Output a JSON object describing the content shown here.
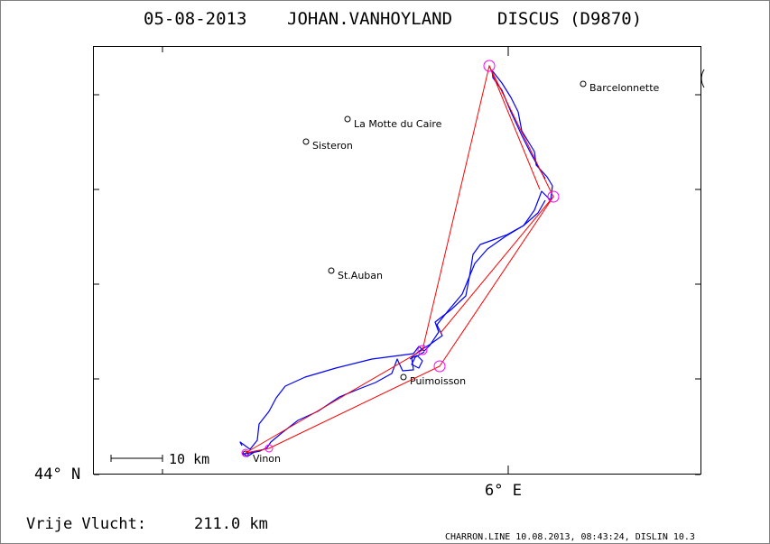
{
  "title": {
    "date": "05-08-2013",
    "pilot": "JOHAN.VANHOYLAND",
    "glider": "DISCUS (D9870)"
  },
  "axes": {
    "lat_label": "44° N",
    "lon_label": "6° E"
  },
  "scale_bar": {
    "label": "10 km"
  },
  "footer": {
    "distance_label": "Vrije Vlucht:",
    "distance_value": "211.0 km",
    "credit": "CHARRON.LINE 10.08.2013, 08:43:24, DISLIN 10.3"
  },
  "places": [
    {
      "name": "Barcelonnette"
    },
    {
      "name": "La Motte du Caire"
    },
    {
      "name": "Sisteron"
    },
    {
      "name": "St.Auban"
    },
    {
      "name": "Puimoisson"
    },
    {
      "name": "Vinon"
    }
  ],
  "colors": {
    "track": "#0000ff",
    "task_line": "#ff0000",
    "turnpoint": "#ff00ff",
    "frame": "#000000"
  }
}
